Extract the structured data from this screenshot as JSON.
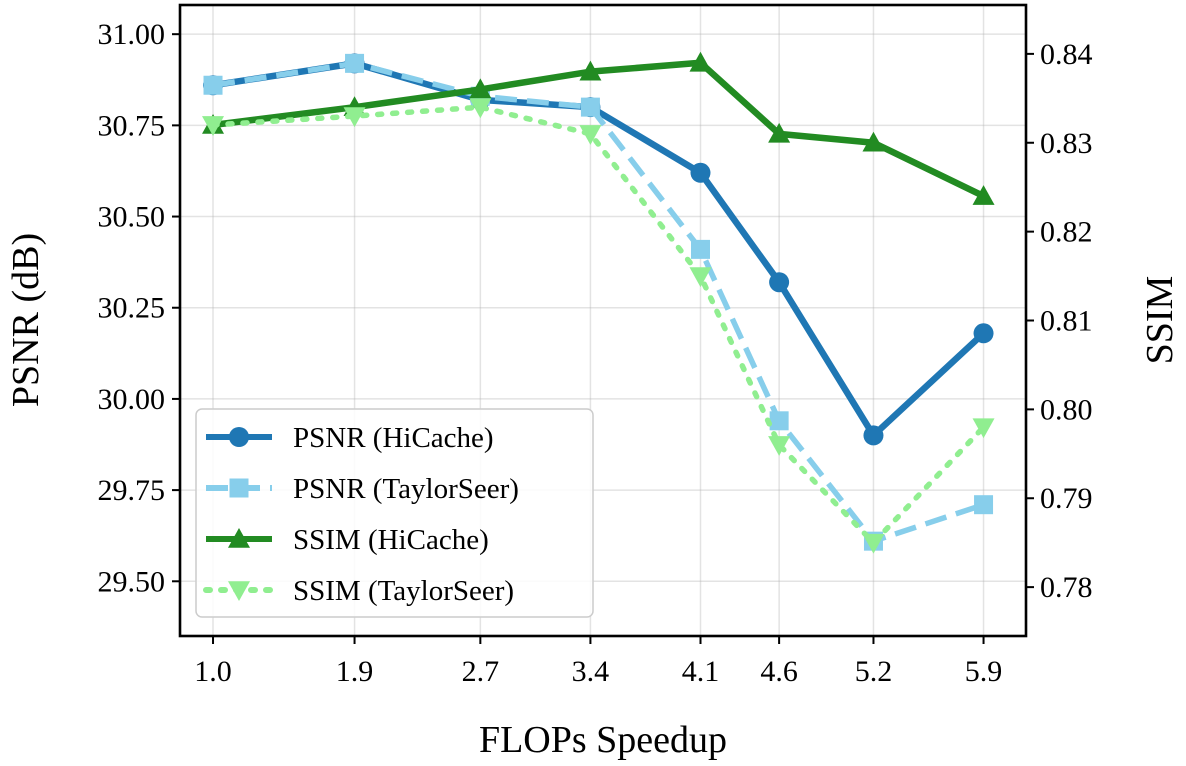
{
  "chart_data": {
    "type": "line",
    "title": "",
    "xlabel": "FLOPs Speedup",
    "ylabel_left": "PSNR (dB)",
    "ylabel_right": "SSIM",
    "x": [
      1.0,
      1.9,
      2.7,
      3.4,
      4.1,
      4.6,
      5.2,
      5.9
    ],
    "x_tick_labels": [
      "1.0",
      "1.9",
      "2.7",
      "3.4",
      "4.1",
      "4.6",
      "5.2",
      "5.9"
    ],
    "ylim_left": [
      29.35,
      31.08
    ],
    "ylim_right": [
      0.7745,
      0.8455
    ],
    "y_left_ticks": [
      29.5,
      29.75,
      30.0,
      30.25,
      30.5,
      30.75,
      31.0
    ],
    "y_left_tick_labels": [
      "29.50",
      "29.75",
      "30.00",
      "30.25",
      "30.50",
      "30.75",
      "31.00"
    ],
    "y_right_ticks": [
      0.78,
      0.79,
      0.8,
      0.81,
      0.82,
      0.83,
      0.84
    ],
    "y_right_tick_labels": [
      "0.78",
      "0.79",
      "0.80",
      "0.81",
      "0.82",
      "0.83",
      "0.84"
    ],
    "grid": true,
    "legend_position": "lower-left",
    "series": [
      {
        "name": "PSNR (HiCache)",
        "axis": "left",
        "color": "#1f77b4",
        "dash": "solid",
        "marker": "circle",
        "values": [
          30.86,
          30.92,
          30.82,
          30.8,
          30.62,
          30.32,
          29.9,
          30.18
        ]
      },
      {
        "name": "PSNR (TaylorSeer)",
        "axis": "left",
        "color": "#87ceeb",
        "dash": "dashed",
        "marker": "square",
        "values": [
          30.86,
          30.92,
          30.83,
          30.8,
          30.41,
          29.94,
          29.61,
          29.71
        ]
      },
      {
        "name": "SSIM (HiCache)",
        "axis": "right",
        "color": "#228b22",
        "dash": "solid",
        "marker": "triangle-up",
        "values": [
          0.832,
          0.834,
          0.836,
          0.838,
          0.839,
          0.831,
          0.83,
          0.824
        ]
      },
      {
        "name": "SSIM (TaylorSeer)",
        "axis": "right",
        "color": "#90ee90",
        "dash": "dotted",
        "marker": "triangle-down",
        "values": [
          0.832,
          0.833,
          0.834,
          0.831,
          0.815,
          0.796,
          0.785,
          0.798
        ]
      }
    ]
  }
}
